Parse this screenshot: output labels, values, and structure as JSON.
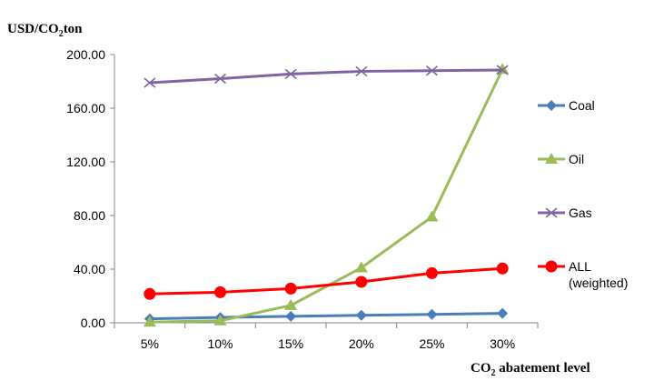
{
  "chart_data": {
    "type": "line",
    "ylabel": {
      "prefix": "USD/CO",
      "sub": "2",
      "suffix": "ton"
    },
    "xlabel": {
      "prefix": "CO",
      "sub": "2",
      "suffix": " abatement level"
    },
    "categories": [
      "5%",
      "10%",
      "15%",
      "20%",
      "25%",
      "30%"
    ],
    "yticks": [
      "0.00",
      "40.00",
      "80.00",
      "120.00",
      "160.00",
      "200.00"
    ],
    "ylim": [
      0,
      200
    ],
    "grid": false,
    "legend_position": "right",
    "series": [
      {
        "name": "Coal",
        "color": "#4a7ebb",
        "marker": "diamond",
        "values": [
          3.0,
          4.0,
          4.8,
          5.6,
          6.3,
          7.0
        ]
      },
      {
        "name": "Oil",
        "color": "#9bbb59",
        "marker": "triangle",
        "values": [
          0.5,
          1.5,
          13.0,
          41.0,
          79.0,
          189.0
        ]
      },
      {
        "name": "Gas",
        "color": "#8064a2",
        "marker": "x",
        "values": [
          179.0,
          182.0,
          185.5,
          187.5,
          188.0,
          188.5
        ]
      },
      {
        "name": "ALL",
        "name_line2": "(weighted)",
        "color": "#ff0000",
        "marker": "circle",
        "values": [
          21.5,
          22.8,
          25.5,
          30.5,
          37.0,
          40.5
        ]
      }
    ]
  }
}
